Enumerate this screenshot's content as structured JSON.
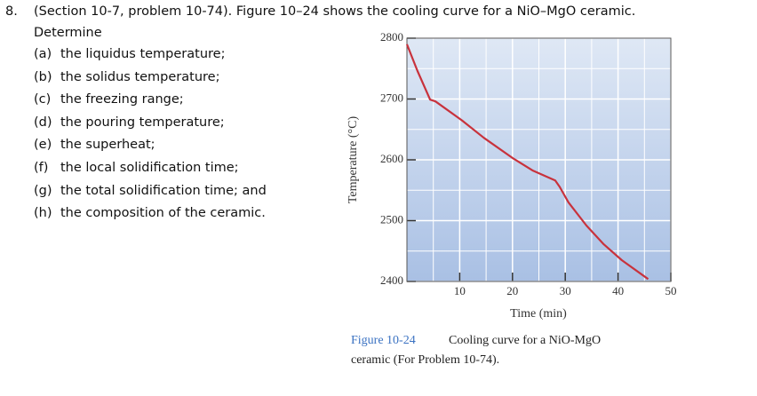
{
  "question": {
    "number": "8.",
    "intro": "(Section 10-7, problem 10-74).  Figure 10–24 shows the cooling curve for a NiO–MgO ceramic.",
    "lead": "Determine",
    "items": [
      {
        "label": "(a)",
        "text": "the liquidus temperature;"
      },
      {
        "label": "(b)",
        "text": "the solidus temperature;"
      },
      {
        "label": "(c)",
        "text": "the freezing range;"
      },
      {
        "label": "(d)",
        "text": "the pouring temperature;"
      },
      {
        "label": "(e)",
        "text": "the superheat;"
      },
      {
        "label": "(f)",
        "text": "the local solidification time;"
      },
      {
        "label": "(g)",
        "text": "the total solidification time; and"
      },
      {
        "label": "(h)",
        "text": "the composition of the ceramic."
      }
    ]
  },
  "chart_data": {
    "type": "line",
    "x_label": "Time (min)",
    "y_label": "Temperature (°C)",
    "x": [
      0,
      2,
      4.4,
      5.4,
      10.4,
      14.6,
      20,
      23.9,
      28.1,
      28.9,
      30.6,
      34,
      37.3,
      40.7,
      45.7
    ],
    "values": [
      2790,
      2746,
      2699,
      2696,
      2665,
      2636,
      2603,
      2582,
      2566,
      2556,
      2530,
      2492,
      2461,
      2435,
      2404
    ],
    "color": "#c8323c",
    "xlim": [
      0,
      50
    ],
    "ylim": [
      2400,
      2800
    ],
    "xticks": [
      10,
      20,
      30,
      40,
      50
    ],
    "yticks": [
      2400,
      2500,
      2600,
      2700,
      2800
    ],
    "minor_xticks": [
      5,
      15,
      25,
      35,
      45
    ],
    "minor_yticks": [
      2450,
      2550,
      2650,
      2750
    ],
    "grid": true,
    "caption": {
      "label": "Figure 10-24",
      "line1": "Cooling curve for a NiO-MgO",
      "line2": "ceramic (For Problem 10-74)."
    }
  }
}
